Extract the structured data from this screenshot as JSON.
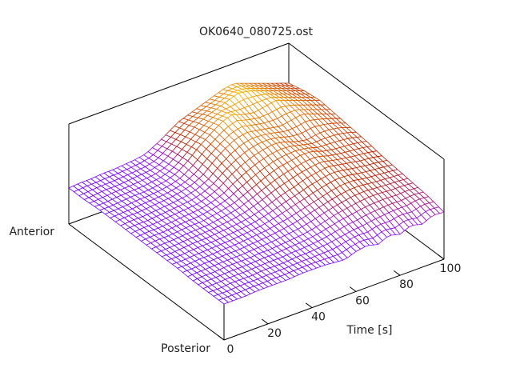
{
  "chart_data": {
    "type": "surface",
    "title": "OK0640_080725.ost",
    "x_axis": {
      "label": "Time [s]",
      "ticks": [
        0,
        20,
        40,
        60,
        80,
        100
      ],
      "tick_labels": [
        "0",
        "20",
        "40",
        "60",
        "80",
        "100"
      ],
      "range": [
        0,
        100
      ]
    },
    "y_axis": {
      "tick_labels": [
        "Posterior",
        "Anterior"
      ],
      "range": [
        0,
        1
      ]
    },
    "z_axis": {
      "range": [
        0,
        1
      ]
    },
    "grid": false,
    "colormap": "purple-red-orange by height",
    "times": [
      0,
      5,
      10,
      15,
      20,
      25,
      30,
      35,
      40,
      45,
      50,
      55,
      60,
      65,
      70,
      75,
      80,
      85,
      90,
      95,
      100
    ],
    "positions": [
      0,
      0.1,
      0.2,
      0.3,
      0.4,
      0.5,
      0.6,
      0.7,
      0.8,
      0.9,
      1.0
    ],
    "z": [
      [
        0.36,
        0.36,
        0.36,
        0.37,
        0.37,
        0.37,
        0.37,
        0.37,
        0.37,
        0.36,
        0.36
      ],
      [
        0.36,
        0.36,
        0.37,
        0.37,
        0.37,
        0.38,
        0.38,
        0.38,
        0.37,
        0.37,
        0.37
      ],
      [
        0.36,
        0.37,
        0.37,
        0.38,
        0.38,
        0.38,
        0.38,
        0.38,
        0.38,
        0.38,
        0.37
      ],
      [
        0.37,
        0.37,
        0.38,
        0.38,
        0.39,
        0.39,
        0.39,
        0.39,
        0.39,
        0.38,
        0.38
      ],
      [
        0.37,
        0.37,
        0.38,
        0.39,
        0.39,
        0.4,
        0.4,
        0.4,
        0.39,
        0.39,
        0.38
      ],
      [
        0.37,
        0.38,
        0.38,
        0.39,
        0.4,
        0.4,
        0.41,
        0.41,
        0.4,
        0.4,
        0.39
      ],
      [
        0.37,
        0.38,
        0.39,
        0.4,
        0.41,
        0.42,
        0.42,
        0.43,
        0.42,
        0.41,
        0.4
      ],
      [
        0.38,
        0.38,
        0.39,
        0.41,
        0.42,
        0.44,
        0.45,
        0.46,
        0.46,
        0.44,
        0.42
      ],
      [
        0.38,
        0.39,
        0.4,
        0.42,
        0.44,
        0.47,
        0.5,
        0.52,
        0.54,
        0.52,
        0.48
      ],
      [
        0.38,
        0.39,
        0.41,
        0.44,
        0.47,
        0.52,
        0.58,
        0.62,
        0.64,
        0.6,
        0.55
      ],
      [
        0.37,
        0.4,
        0.42,
        0.46,
        0.51,
        0.57,
        0.64,
        0.7,
        0.72,
        0.68,
        0.62
      ],
      [
        0.36,
        0.41,
        0.44,
        0.49,
        0.55,
        0.62,
        0.69,
        0.76,
        0.8,
        0.74,
        0.66
      ],
      [
        0.4,
        0.43,
        0.47,
        0.52,
        0.58,
        0.66,
        0.72,
        0.78,
        0.84,
        0.78,
        0.7
      ],
      [
        0.42,
        0.45,
        0.5,
        0.55,
        0.62,
        0.68,
        0.74,
        0.76,
        0.8,
        0.82,
        0.74
      ],
      [
        0.39,
        0.46,
        0.52,
        0.58,
        0.64,
        0.7,
        0.72,
        0.74,
        0.78,
        0.86,
        0.78
      ],
      [
        0.44,
        0.48,
        0.54,
        0.6,
        0.66,
        0.7,
        0.68,
        0.72,
        0.8,
        0.84,
        0.8
      ],
      [
        0.41,
        0.49,
        0.55,
        0.6,
        0.64,
        0.66,
        0.66,
        0.74,
        0.82,
        0.8,
        0.76
      ],
      [
        0.46,
        0.5,
        0.55,
        0.58,
        0.62,
        0.64,
        0.68,
        0.76,
        0.78,
        0.76,
        0.72
      ],
      [
        0.43,
        0.5,
        0.54,
        0.57,
        0.6,
        0.63,
        0.68,
        0.72,
        0.74,
        0.72,
        0.68
      ],
      [
        0.48,
        0.52,
        0.54,
        0.56,
        0.59,
        0.62,
        0.66,
        0.68,
        0.7,
        0.68,
        0.64
      ],
      [
        0.47,
        0.51,
        0.53,
        0.55,
        0.57,
        0.6,
        0.62,
        0.64,
        0.66,
        0.64,
        0.6
      ]
    ]
  }
}
